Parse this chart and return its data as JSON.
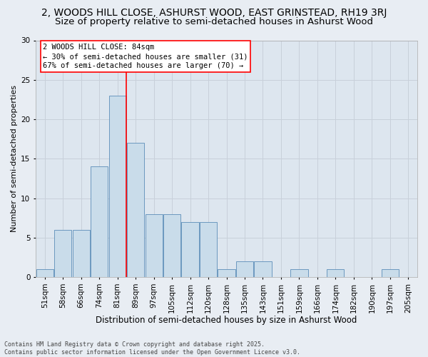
{
  "title_line1": "2, WOODS HILL CLOSE, ASHURST WOOD, EAST GRINSTEAD, RH19 3RJ",
  "title_line2": "Size of property relative to semi-detached houses in Ashurst Wood",
  "xlabel": "Distribution of semi-detached houses by size in Ashurst Wood",
  "ylabel": "Number of semi-detached properties",
  "footnote1": "Contains HM Land Registry data © Crown copyright and database right 2025.",
  "footnote2": "Contains public sector information licensed under the Open Government Licence v3.0.",
  "annotation_title": "2 WOODS HILL CLOSE: 84sqm",
  "annotation_line2": "← 30% of semi-detached houses are smaller (31)",
  "annotation_line3": "67% of semi-detached houses are larger (70) →",
  "categories": [
    "51sqm",
    "58sqm",
    "66sqm",
    "74sqm",
    "81sqm",
    "89sqm",
    "97sqm",
    "105sqm",
    "112sqm",
    "120sqm",
    "128sqm",
    "135sqm",
    "143sqm",
    "151sqm",
    "159sqm",
    "166sqm",
    "174sqm",
    "182sqm",
    "190sqm",
    "197sqm",
    "205sqm"
  ],
  "values": [
    1,
    6,
    6,
    14,
    23,
    17,
    8,
    8,
    7,
    7,
    1,
    2,
    2,
    0,
    1,
    0,
    1,
    0,
    0,
    1,
    0
  ],
  "bar_color": "#c9dcea",
  "bar_edge_color": "#5b8db8",
  "grid_color": "#c8d0da",
  "bg_color": "#dde6ef",
  "fig_bg_color": "#e8edf3",
  "annotation_box_color": "white",
  "annotation_box_edge": "red",
  "vline_color": "red",
  "vline_x": 4.5,
  "ylim": [
    0,
    30
  ],
  "yticks": [
    0,
    5,
    10,
    15,
    20,
    25,
    30
  ],
  "title_fontsize": 10,
  "subtitle_fontsize": 9.5,
  "xlabel_fontsize": 8.5,
  "ylabel_fontsize": 8,
  "tick_fontsize": 7.5,
  "annotation_fontsize": 7.5,
  "footnote_fontsize": 6
}
